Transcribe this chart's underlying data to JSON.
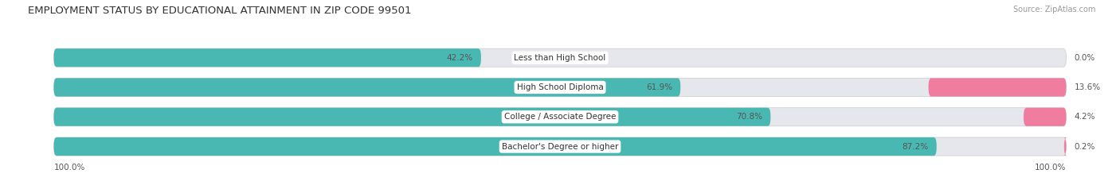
{
  "title": "EMPLOYMENT STATUS BY EDUCATIONAL ATTAINMENT IN ZIP CODE 99501",
  "source": "Source: ZipAtlas.com",
  "categories": [
    "Less than High School",
    "High School Diploma",
    "College / Associate Degree",
    "Bachelor's Degree or higher"
  ],
  "labor_force": [
    42.2,
    61.9,
    70.8,
    87.2
  ],
  "unemployed": [
    0.0,
    13.6,
    4.2,
    0.2
  ],
  "labor_force_color": "#4ab8b2",
  "unemployed_color": "#f07ca0",
  "bar_bg_color": "#e6e6ed",
  "title_fontsize": 9.5,
  "source_fontsize": 7,
  "bar_label_fontsize": 7.5,
  "category_fontsize": 7.5,
  "legend_fontsize": 7.5,
  "left_axis_label": "100.0%",
  "right_axis_label": "100.0%"
}
